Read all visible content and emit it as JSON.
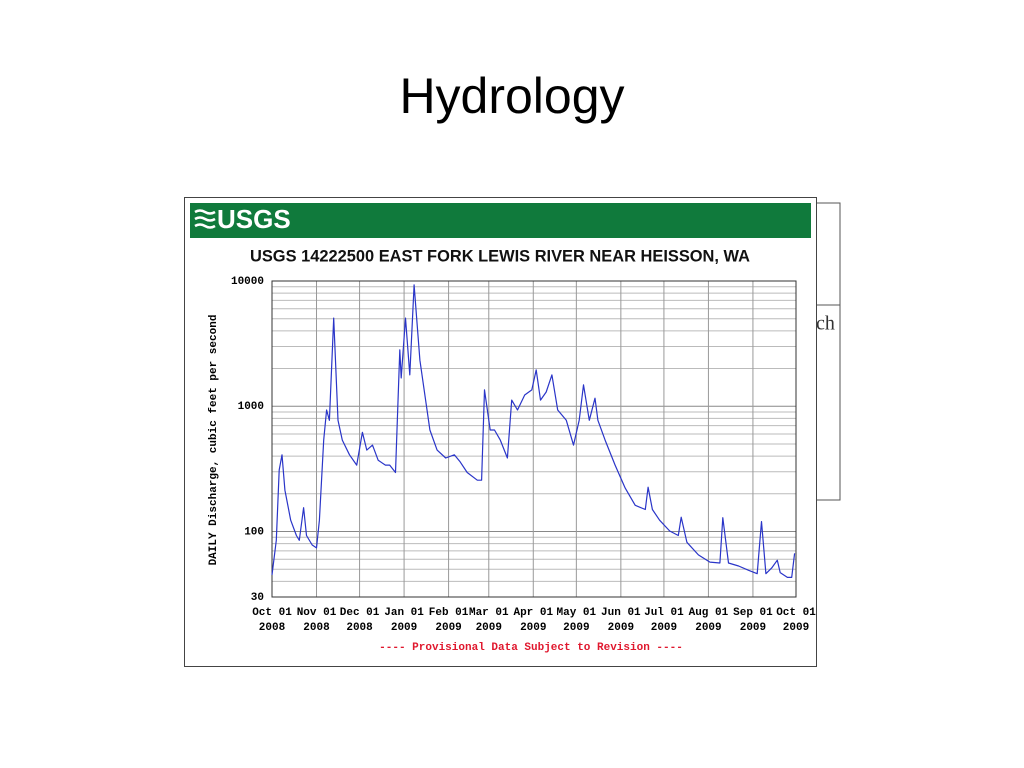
{
  "slide_title": "Hydrology",
  "behind_fragment": "ch",
  "chart_data": {
    "type": "line",
    "logo": "USGS",
    "title": "USGS 14222500 EAST FORK LEWIS RIVER NEAR HEISSON, WA",
    "y_label": "DAILY Discharge, cubic feet per second",
    "footnote": "---- Provisional Data Subject to Revision ----",
    "log_y": true,
    "grid": true,
    "color": "#2a35c8",
    "ylim": [
      30,
      10000
    ],
    "yticks": [
      10000,
      1000,
      100,
      30
    ],
    "xlim": [
      "2008-10-01",
      "2009-10-01"
    ],
    "xticks": [
      {
        "value": "2008-10-01",
        "label": [
          "Oct 01",
          "2008"
        ]
      },
      {
        "value": "2008-11-01",
        "label": [
          "Nov 01",
          "2008"
        ]
      },
      {
        "value": "2008-12-01",
        "label": [
          "Dec 01",
          "2008"
        ]
      },
      {
        "value": "2009-01-01",
        "label": [
          "Jan 01",
          "2009"
        ]
      },
      {
        "value": "2009-02-01",
        "label": [
          "Feb 01",
          "2009"
        ]
      },
      {
        "value": "2009-03-01",
        "label": [
          "Mar 01",
          "2009"
        ]
      },
      {
        "value": "2009-04-01",
        "label": [
          "Apr 01",
          "2009"
        ]
      },
      {
        "value": "2009-05-01",
        "label": [
          "May 01",
          "2009"
        ]
      },
      {
        "value": "2009-06-01",
        "label": [
          "Jun 01",
          "2009"
        ]
      },
      {
        "value": "2009-07-01",
        "label": [
          "Jul 01",
          "2009"
        ]
      },
      {
        "value": "2009-08-01",
        "label": [
          "Aug 01",
          "2009"
        ]
      },
      {
        "value": "2009-09-01",
        "label": [
          "Sep 01",
          "2009"
        ]
      },
      {
        "value": "2009-10-01",
        "label": [
          "Oct 01",
          "2009"
        ]
      }
    ],
    "x": [
      "2008-10-01",
      "2008-10-04",
      "2008-10-06",
      "2008-10-08",
      "2008-10-10",
      "2008-10-14",
      "2008-10-18",
      "2008-10-20",
      "2008-10-23",
      "2008-10-25",
      "2008-10-29",
      "2008-11-01",
      "2008-11-03",
      "2008-11-06",
      "2008-11-08",
      "2008-11-10",
      "2008-11-13",
      "2008-11-16",
      "2008-11-19",
      "2008-11-24",
      "2008-11-29",
      "2008-12-03",
      "2008-12-06",
      "2008-12-10",
      "2008-12-14",
      "2008-12-19",
      "2008-12-22",
      "2008-12-26",
      "2008-12-29",
      "2008-12-30",
      "2009-01-02",
      "2009-01-05",
      "2009-01-08",
      "2009-01-12",
      "2009-01-16",
      "2009-01-19",
      "2009-01-24",
      "2009-01-30",
      "2009-02-05",
      "2009-02-09",
      "2009-02-14",
      "2009-02-21",
      "2009-02-24",
      "2009-02-26",
      "2009-03-02",
      "2009-03-05",
      "2009-03-09",
      "2009-03-14",
      "2009-03-17",
      "2009-03-21",
      "2009-03-26",
      "2009-03-31",
      "2009-04-03",
      "2009-04-06",
      "2009-04-10",
      "2009-04-14",
      "2009-04-18",
      "2009-04-24",
      "2009-04-29",
      "2009-05-03",
      "2009-05-06",
      "2009-05-10",
      "2009-05-14",
      "2009-05-16",
      "2009-05-21",
      "2009-05-28",
      "2009-06-04",
      "2009-06-11",
      "2009-06-18",
      "2009-06-20",
      "2009-06-23",
      "2009-06-28",
      "2009-07-05",
      "2009-07-11",
      "2009-07-13",
      "2009-07-17",
      "2009-07-25",
      "2009-08-02",
      "2009-08-09",
      "2009-08-11",
      "2009-08-15",
      "2009-08-22",
      "2009-08-29",
      "2009-09-04",
      "2009-09-07",
      "2009-09-10",
      "2009-09-14",
      "2009-09-18",
      "2009-09-20",
      "2009-09-25",
      "2009-09-28",
      "2009-09-30"
    ],
    "values": [
      45,
      85,
      310,
      410,
      214,
      123,
      93,
      85,
      155,
      93,
      78,
      74,
      123,
      537,
      933,
      772,
      5060,
      772,
      537,
      410,
      339,
      619,
      447,
      490,
      370,
      339,
      339,
      296,
      2820,
      1680,
      5060,
      1780,
      9300,
      2330,
      1120,
      646,
      447,
      386,
      410,
      360,
      296,
      257,
      257,
      1350,
      646,
      646,
      537,
      386,
      1120,
      933,
      1230,
      1350,
      1950,
      1120,
      1300,
      1780,
      933,
      772,
      490,
      772,
      1480,
      772,
      1160,
      772,
      537,
      339,
      222,
      162,
      150,
      226,
      150,
      123,
      101,
      93,
      130,
      82,
      65,
      57,
      56,
      129,
      56,
      53,
      49,
      46,
      120,
      46,
      51,
      59,
      47,
      43,
      43,
      67
    ]
  }
}
